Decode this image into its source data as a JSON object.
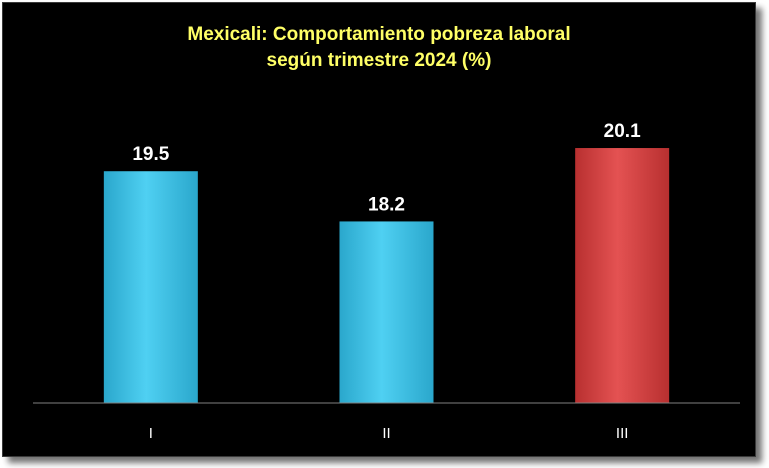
{
  "chart_data": {
    "type": "bar",
    "title_lines": [
      "Mexicali: Comportamiento pobreza laboral",
      "según trimestre 2024 (%)"
    ],
    "categories": [
      "I",
      "II",
      "III"
    ],
    "values": [
      19.5,
      18.2,
      20.1
    ],
    "value_labels": [
      "19.5",
      "18.2",
      "20.1"
    ],
    "ylim": [
      13.5,
      20.8
    ],
    "grid": false,
    "legend": "none",
    "colors": {
      "background": "#000000",
      "title": "#ffff66",
      "bar_default": "#3cc0e6",
      "bar_highlight": "#d94444",
      "labels": "#ffffff",
      "axis": "#808080"
    },
    "highlight_index": 2
  }
}
